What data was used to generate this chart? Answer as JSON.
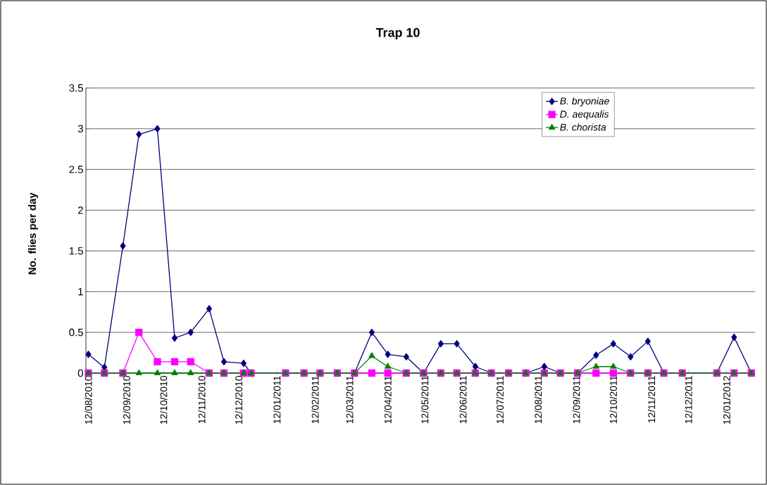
{
  "chart_data": {
    "type": "line",
    "title": "Trap 10",
    "ylabel": "No. flies per day",
    "x": [
      "2010-08-12",
      "2010-08-25",
      "2010-09-09",
      "2010-09-22",
      "2010-10-07",
      "2010-10-21",
      "2010-11-03",
      "2010-11-18",
      "2010-11-30",
      "2010-12-16",
      "2010-12-22",
      "2011-01-19",
      "2011-02-03",
      "2011-02-16",
      "2011-03-02",
      "2011-03-16",
      "2011-03-30",
      "2011-04-12",
      "2011-04-27",
      "2011-05-11",
      "2011-05-25",
      "2011-06-07",
      "2011-06-22",
      "2011-07-05",
      "2011-07-19",
      "2011-08-02",
      "2011-08-17",
      "2011-08-30",
      "2011-09-13",
      "2011-09-28",
      "2011-10-12",
      "2011-10-26",
      "2011-11-09",
      "2011-11-22",
      "2011-12-07",
      "2012-01-04",
      "2012-01-18",
      "2012-02-01"
    ],
    "series": [
      {
        "name": "B. bryoniae",
        "color": "#000080",
        "marker": "diamond",
        "values": [
          0.23,
          0.07,
          1.56,
          2.93,
          3.0,
          0.43,
          0.5,
          0.79,
          0.14,
          0.12,
          0,
          0,
          0,
          0,
          0,
          0,
          0.5,
          0.23,
          0.2,
          0,
          0.36,
          0.36,
          0.08,
          0,
          0,
          0,
          0.08,
          0,
          0,
          0.22,
          0.36,
          0.2,
          0.39,
          0,
          0,
          0,
          0.44,
          0
        ]
      },
      {
        "name": "D. aequalis",
        "color": "#ff00ff",
        "marker": "square",
        "values": [
          0,
          0,
          0,
          0.5,
          0.14,
          0.14,
          0.14,
          0,
          0,
          0,
          0,
          0,
          0,
          0,
          0,
          0,
          0,
          0,
          0,
          0,
          0,
          0,
          0,
          0,
          0,
          0,
          0,
          0,
          0,
          0,
          0,
          0,
          0,
          0,
          0,
          0,
          0,
          0
        ]
      },
      {
        "name": "B. chorista",
        "color": "#008000",
        "marker": "triangle",
        "values": [
          0,
          0,
          0,
          0,
          0,
          0,
          0,
          0,
          0,
          0,
          0,
          0,
          0,
          0,
          0,
          0,
          0.21,
          0.08,
          0,
          0,
          0,
          0,
          0,
          0,
          0,
          0,
          0,
          0,
          0,
          0.08,
          0.08,
          0,
          0,
          0,
          0,
          0,
          0,
          0
        ]
      }
    ],
    "xlim": [
      "2010-08-10",
      "2012-02-04"
    ],
    "xticks": [
      {
        "value": "2010-08-12",
        "label": "12/08/2010"
      },
      {
        "value": "2010-09-12",
        "label": "12/09/2010"
      },
      {
        "value": "2010-10-12",
        "label": "12/10/2010"
      },
      {
        "value": "2010-11-12",
        "label": "12/11/2010"
      },
      {
        "value": "2010-12-12",
        "label": "12/12/2010"
      },
      {
        "value": "2011-01-12",
        "label": "12/01/2011"
      },
      {
        "value": "2011-02-12",
        "label": "12/02/2011"
      },
      {
        "value": "2011-03-12",
        "label": "12/03/2011"
      },
      {
        "value": "2011-04-12",
        "label": "12/04/2011"
      },
      {
        "value": "2011-05-12",
        "label": "12/05/2011"
      },
      {
        "value": "2011-06-12",
        "label": "12/06/2011"
      },
      {
        "value": "2011-07-12",
        "label": "12/07/2011"
      },
      {
        "value": "2011-08-12",
        "label": "12/08/2011"
      },
      {
        "value": "2011-09-12",
        "label": "12/09/2011"
      },
      {
        "value": "2011-10-12",
        "label": "12/10/2011"
      },
      {
        "value": "2011-11-12",
        "label": "12/11/2011"
      },
      {
        "value": "2011-12-12",
        "label": "12/12/2011"
      },
      {
        "value": "2012-01-12",
        "label": "12/01/2012"
      }
    ],
    "ylim": [
      0,
      3.5
    ],
    "yticks": [
      0,
      0.5,
      1,
      1.5,
      2,
      2.5,
      3,
      3.5
    ],
    "grid": "y",
    "legend": "top right",
    "line_style": "solid"
  }
}
